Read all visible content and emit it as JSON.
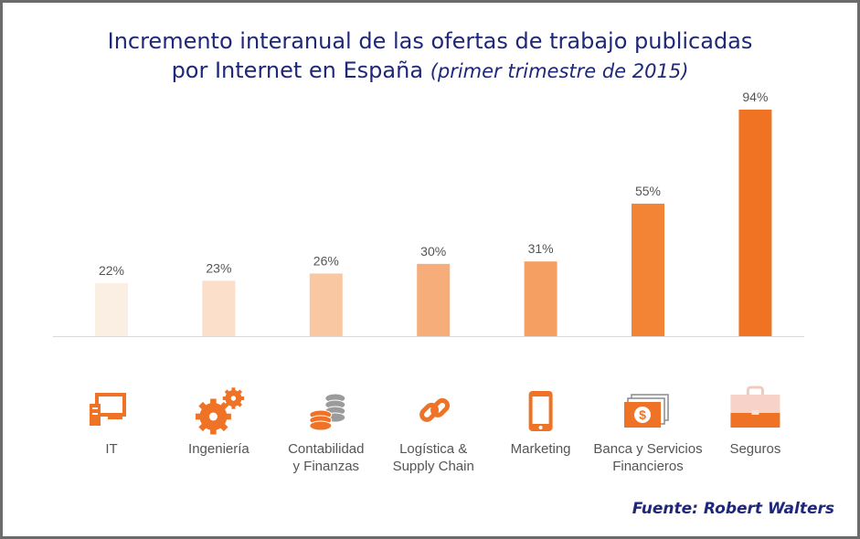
{
  "title_line1": "Incremento interanual de las ofertas de trabajo publicadas",
  "title_line2": "por Internet en España",
  "title_note": "(primer trimestre de 2015)",
  "source": "Fuente: Robert Walters",
  "chart_data": {
    "type": "bar",
    "title": "Incremento interanual de las ofertas de trabajo publicadas por Internet en España (primer trimestre de 2015)",
    "categories": [
      "IT",
      "Ingeniería",
      "Contabilidad y Finanzas",
      "Logística & Supply Chain",
      "Marketing",
      "Banca y Servicios Financieros",
      "Seguros"
    ],
    "category_lines": [
      [
        "IT"
      ],
      [
        "Ingeniería"
      ],
      [
        "Contabilidad",
        "y Finanzas"
      ],
      [
        "Logística &",
        "Supply Chain"
      ],
      [
        "Marketing"
      ],
      [
        "Banca y Servicios",
        "Financieros"
      ],
      [
        "Seguros"
      ]
    ],
    "values": [
      22,
      23,
      26,
      30,
      31,
      55,
      94
    ],
    "data_labels": [
      "22%",
      "23%",
      "26%",
      "30%",
      "31%",
      "55%",
      "94%"
    ],
    "colors": [
      "#fbeee3",
      "#fbdfca",
      "#f9c8a2",
      "#f6ad79",
      "#f59f62",
      "#f38436",
      "#f07323"
    ],
    "icons": [
      "computer-icon",
      "gears-icon",
      "coins-icon",
      "chain-link-icon",
      "smartphone-icon",
      "banknotes-icon",
      "briefcase-icon"
    ],
    "icon_color": "#ee7326",
    "ylim": [
      0,
      100
    ],
    "grid": false,
    "xlabel": "",
    "ylabel": ""
  }
}
